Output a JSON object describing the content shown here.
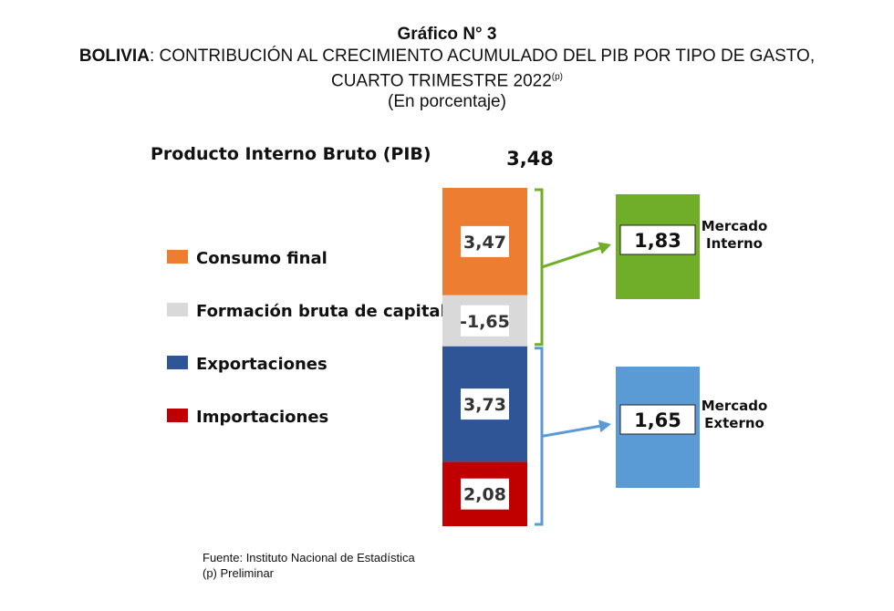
{
  "header": {
    "figure_number": "Gráfico N° 3",
    "country": "BOLIVIA",
    "title_rest": ": CONTRIBUCIÓN AL CRECIMIENTO ACUMULADO DEL PIB POR TIPO DE GASTO,",
    "title_line2": "CUARTO TRIMESTRE 2022",
    "title_superscript": "(p)",
    "units": "(En porcentaje)"
  },
  "chart_data": {
    "type": "bar",
    "subtype": "stacked-column-with-summary-boxes",
    "title": "Producto Interno Bruto (PIB)",
    "total_label": "3,48",
    "total": 3.48,
    "stack_note": "Segment heights are proportional to the absolute value of each contribution; the negative contribution is drawn in stack order.",
    "series": [
      {
        "name": "Consumo final",
        "value": 3.47,
        "label": "3,47",
        "color": "#ED7D31"
      },
      {
        "name": "Formación bruta de capital",
        "value": -1.65,
        "label": "-1,65",
        "color": "#D9D9D9"
      },
      {
        "name": "Exportaciones",
        "value": 3.73,
        "label": "3,73",
        "color": "#2F5597"
      },
      {
        "name": "Importaciones",
        "value": 2.08,
        "label": "2,08",
        "color": "#C00000"
      }
    ],
    "groups": [
      {
        "name": "Mercado Interno",
        "label_line1": "Mercado",
        "label_line2": "Interno",
        "value": 1.83,
        "value_label": "1,83",
        "color": "#70AD28",
        "bracket_color": "#70AD28",
        "members": [
          0,
          1
        ]
      },
      {
        "name": "Mercado Externo",
        "label_line1": "Mercado",
        "label_line2": "Externo",
        "value": 1.65,
        "value_label": "1,65",
        "color": "#5B9BD5",
        "bracket_color": "#5B9BD5",
        "members": [
          2,
          3
        ]
      }
    ],
    "legend_placement": "left"
  },
  "footer": {
    "source": "Fuente: Instituto Nacional de Estadística",
    "note": "(p) Preliminar"
  }
}
